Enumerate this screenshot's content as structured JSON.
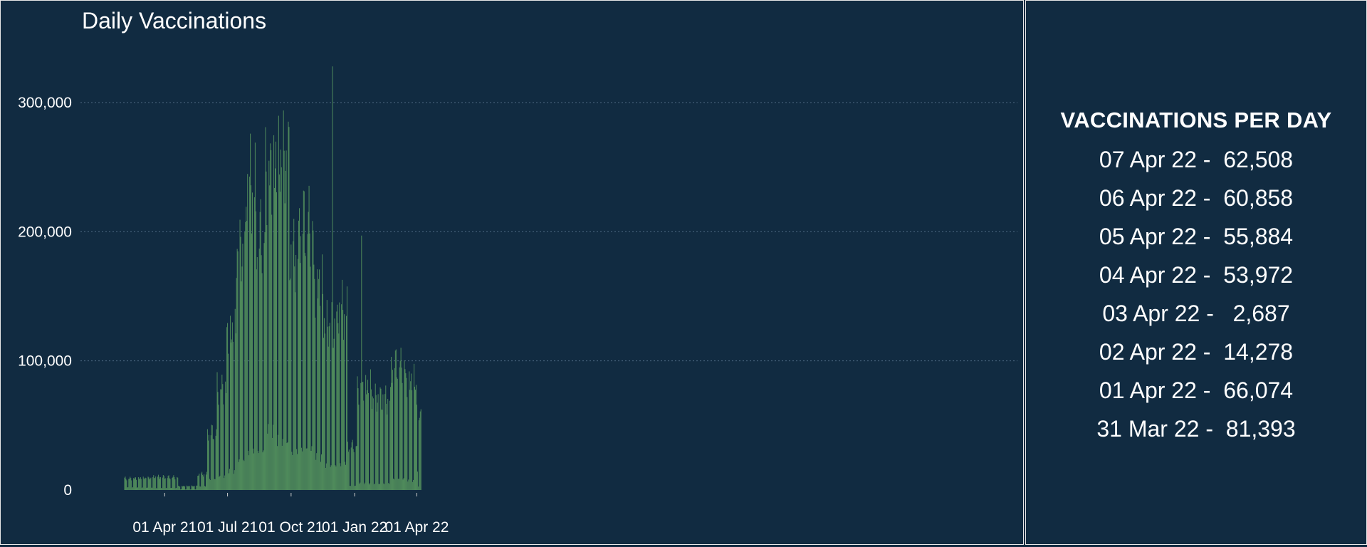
{
  "chart_data": {
    "type": "bar",
    "title": "Daily Vaccinations",
    "xlabel": "",
    "ylabel": "",
    "start_date": "2021-02-02",
    "ylim": [
      0,
      330000
    ],
    "yticks": [
      0,
      100000,
      200000,
      300000
    ],
    "ytick_labels": [
      "0",
      "100,000",
      "200,000",
      "300,000"
    ],
    "xtick_labels": [
      "01 Apr 21",
      "01 Jul 21",
      "01 Oct 21",
      "01 Jan 22",
      "01 Apr 22"
    ],
    "xtick_dates": [
      "2021-04-01",
      "2021-07-01",
      "2021-10-01",
      "2022-01-01",
      "2022-04-01"
    ],
    "grid": true,
    "bar_color": "#4f8a5b",
    "background": "#112b41",
    "weekly_profile": [
      {
        "from": "2021-02-02",
        "to": "2021-03-15",
        "weekday": 9000,
        "weekend": 2000
      },
      {
        "from": "2021-03-16",
        "to": "2021-04-20",
        "weekday": 10000,
        "weekend": 1500
      },
      {
        "from": "2021-04-21",
        "to": "2021-05-18",
        "weekday": 3000,
        "weekend": 500
      },
      {
        "from": "2021-05-19",
        "to": "2021-06-01",
        "weekday": 12000,
        "weekend": 3000
      },
      {
        "from": "2021-06-02",
        "to": "2021-06-15",
        "weekday": 45000,
        "weekend": 8000
      },
      {
        "from": "2021-06-16",
        "to": "2021-06-29",
        "weekday": 80000,
        "weekend": 10000
      },
      {
        "from": "2021-06-30",
        "to": "2021-07-13",
        "weekday": 120000,
        "weekend": 15000
      },
      {
        "from": "2021-07-14",
        "to": "2021-07-27",
        "weekday": 180000,
        "weekend": 25000
      },
      {
        "from": "2021-07-28",
        "to": "2021-08-10",
        "weekday": 235000,
        "weekend": 30000
      },
      {
        "from": "2021-08-11",
        "to": "2021-08-24",
        "weekday": 200000,
        "weekend": 28000
      },
      {
        "from": "2021-08-25",
        "to": "2021-09-07",
        "weekday": 250000,
        "weekend": 45000
      },
      {
        "from": "2021-09-08",
        "to": "2021-09-28",
        "weekday": 250000,
        "weekend": 40000
      },
      {
        "from": "2021-09-29",
        "to": "2021-10-12",
        "weekday": 180000,
        "weekend": 30000
      },
      {
        "from": "2021-10-13",
        "to": "2021-11-02",
        "weekday": 210000,
        "weekend": 30000
      },
      {
        "from": "2021-11-03",
        "to": "2021-11-16",
        "weekday": 160000,
        "weekend": 25000
      },
      {
        "from": "2021-11-17",
        "to": "2021-12-07",
        "weekday": 125000,
        "weekend": 20000
      },
      {
        "from": "2021-12-08",
        "to": "2021-12-21",
        "weekday": 140000,
        "weekend": 20000
      },
      {
        "from": "2021-12-22",
        "to": "2022-01-04",
        "weekday": 35000,
        "weekend": 3000
      },
      {
        "from": "2022-01-05",
        "to": "2022-01-25",
        "weekday": 80000,
        "weekend": 5000
      },
      {
        "from": "2022-01-26",
        "to": "2022-02-22",
        "weekday": 70000,
        "weekend": 5000
      },
      {
        "from": "2022-02-23",
        "to": "2022-03-15",
        "weekday": 100000,
        "weekend": 8000
      },
      {
        "from": "2022-03-16",
        "to": "2022-03-30",
        "weekday": 85000,
        "weekend": 7000
      }
    ],
    "spikes": [
      {
        "date": "2021-11-30",
        "value": 328000
      },
      {
        "date": "2022-01-11",
        "value": 197000
      }
    ],
    "end_values": [
      {
        "date": "2022-03-31",
        "value": 81393
      },
      {
        "date": "2022-04-01",
        "value": 66074
      },
      {
        "date": "2022-04-02",
        "value": 14278
      },
      {
        "date": "2022-04-03",
        "value": 2687
      },
      {
        "date": "2022-04-04",
        "value": 53972
      },
      {
        "date": "2022-04-05",
        "value": 55884
      },
      {
        "date": "2022-04-06",
        "value": 60858
      },
      {
        "date": "2022-04-07",
        "value": 62508
      }
    ]
  },
  "side_panel": {
    "title": "VACCINATIONS PER DAY",
    "entries": [
      {
        "date": "07 Apr 22",
        "value": "62,508"
      },
      {
        "date": "06 Apr 22",
        "value": "60,858"
      },
      {
        "date": "05 Apr 22",
        "value": "55,884"
      },
      {
        "date": "04 Apr 22",
        "value": "53,972"
      },
      {
        "date": "03 Apr 22",
        "value": "2,687"
      },
      {
        "date": "02 Apr 22",
        "value": "14,278"
      },
      {
        "date": "01 Apr 22",
        "value": "66,074"
      },
      {
        "date": "31 Mar 22",
        "value": "81,393"
      }
    ]
  }
}
